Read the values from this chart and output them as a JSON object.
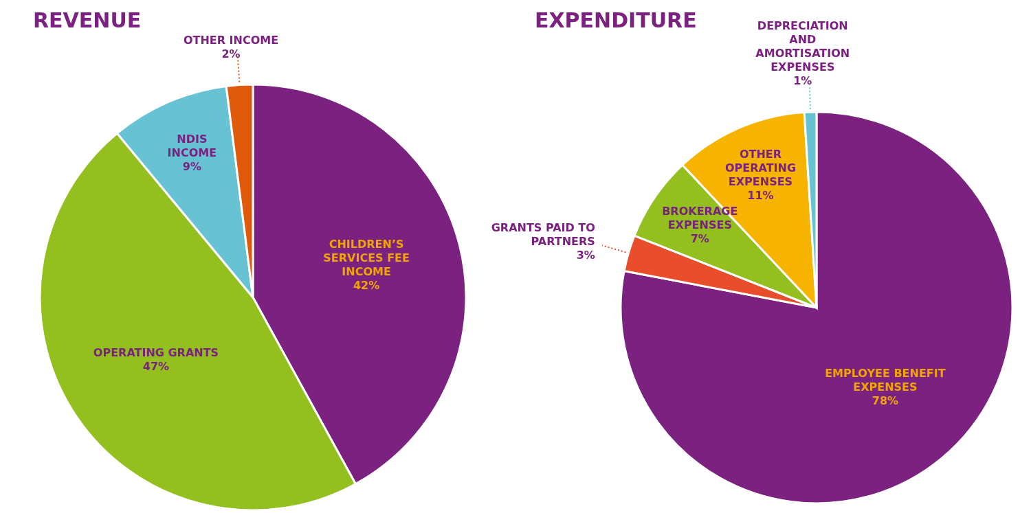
{
  "chart_data": [
    {
      "type": "pie",
      "title": "REVENUE",
      "categories": [
        "CHILDREN’S SERVICES FEE INCOME",
        "OPERATING GRANTS",
        "NDIS INCOME",
        "OTHER INCOME"
      ],
      "values": [
        42,
        47,
        9,
        2
      ],
      "colors": [
        "#7b2180",
        "#93c01f",
        "#67c3d4",
        "#e05a0c"
      ],
      "value_labels": [
        "42%",
        "47%",
        "9%",
        "2%"
      ]
    },
    {
      "type": "pie",
      "title": "EXPENDITURE",
      "categories": [
        "EMPLOYEE BENEFIT EXPENSES",
        "GRANTS PAID TO PARTNERS",
        "BROKERAGE EXPENSES",
        "OTHER OPERATING EXPENSES",
        "DEPRECIATION AND AMORTISATION EXPENSES"
      ],
      "values": [
        78,
        3,
        7,
        11,
        1
      ],
      "colors": [
        "#7b2180",
        "#e84e2b",
        "#93c01f",
        "#f6b400",
        "#67c3d4"
      ],
      "value_labels": [
        "78%",
        "3%",
        "7%",
        "11%",
        "1%"
      ]
    }
  ]
}
